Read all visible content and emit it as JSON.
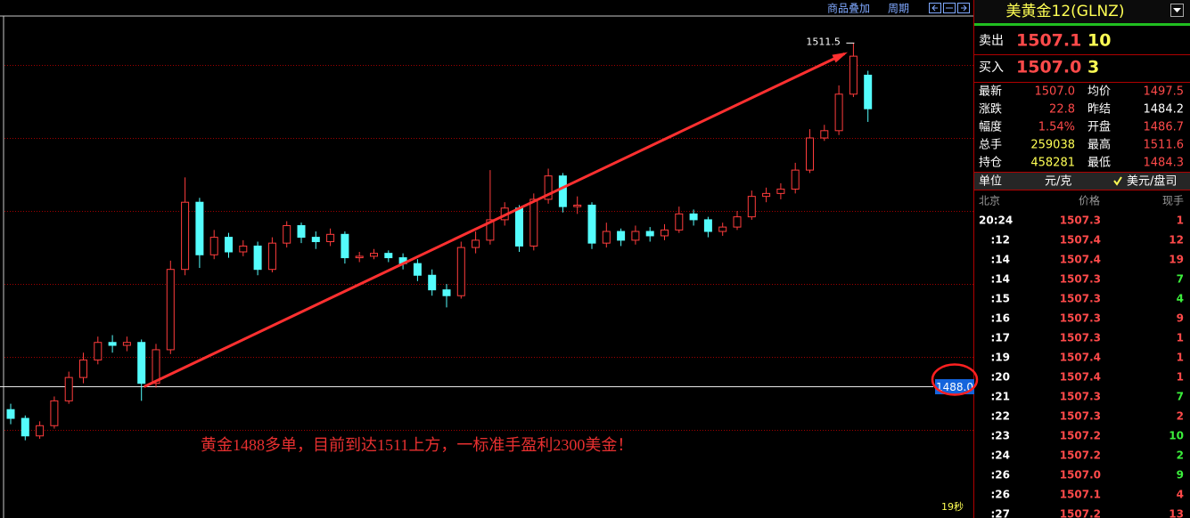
{
  "toolbar": {
    "overlay": "商品叠加",
    "period": "周期"
  },
  "chart_data": {
    "type": "candlestick",
    "open": [
      1486.4,
      1485.8,
      1484.6,
      1485.3,
      1487.0,
      1488.6,
      1489.8,
      1491.0,
      1490.8,
      1491.0,
      1488.2,
      1490.5,
      1496.0,
      1500.6,
      1497.0,
      1498.2,
      1497.2,
      1497.6,
      1496.0,
      1497.8,
      1499.0,
      1498.2,
      1497.9,
      1498.4,
      1496.8,
      1496.9,
      1497.1,
      1496.8,
      1496.4,
      1495.6,
      1494.6,
      1494.2,
      1497.5,
      1498.0,
      1499.4,
      1500.2,
      1497.6,
      1500.8,
      1502.4,
      1500.3,
      1500.4,
      1497.8,
      1498.6,
      1498.0,
      1498.6,
      1498.3,
      1498.7,
      1499.8,
      1499.4,
      1498.6,
      1498.9,
      1499.6,
      1501.0,
      1501.2,
      1501.5,
      1502.8,
      1505.0,
      1505.5,
      1508.0,
      1509.3
    ],
    "high": [
      1486.8,
      1486.0,
      1485.6,
      1487.3,
      1489.0,
      1490.3,
      1491.4,
      1491.5,
      1491.4,
      1491.2,
      1490.9,
      1496.6,
      1502.3,
      1500.9,
      1498.7,
      1498.5,
      1498.0,
      1497.9,
      1498.2,
      1499.3,
      1499.2,
      1498.6,
      1498.8,
      1498.6,
      1497.2,
      1497.4,
      1497.3,
      1497.1,
      1496.7,
      1496.0,
      1495.0,
      1497.9,
      1498.6,
      1502.8,
      1500.6,
      1500.4,
      1501.2,
      1502.9,
      1502.6,
      1501.0,
      1500.6,
      1499.2,
      1498.8,
      1499.0,
      1498.9,
      1499.1,
      1500.3,
      1500.1,
      1499.6,
      1499.2,
      1500.0,
      1501.4,
      1501.6,
      1501.9,
      1503.3,
      1505.6,
      1505.9,
      1508.6,
      1511.5,
      1509.6
    ],
    "low": [
      1485.4,
      1484.3,
      1484.4,
      1485.1,
      1486.8,
      1488.2,
      1489.5,
      1490.3,
      1490.4,
      1487.0,
      1487.9,
      1490.2,
      1495.6,
      1496.1,
      1496.7,
      1496.8,
      1496.9,
      1495.6,
      1495.8,
      1497.5,
      1497.8,
      1497.4,
      1497.6,
      1496.4,
      1496.5,
      1496.7,
      1496.5,
      1496.0,
      1495.2,
      1494.2,
      1493.4,
      1494.0,
      1497.1,
      1497.7,
      1499.0,
      1497.2,
      1497.3,
      1500.5,
      1499.9,
      1499.8,
      1497.4,
      1497.5,
      1497.6,
      1497.7,
      1497.9,
      1498.0,
      1498.5,
      1499.0,
      1498.2,
      1498.3,
      1498.7,
      1499.4,
      1500.6,
      1500.8,
      1501.2,
      1502.6,
      1504.8,
      1505.2,
      1507.8,
      1506.1
    ],
    "close": [
      1485.8,
      1484.6,
      1485.3,
      1487.0,
      1488.6,
      1489.8,
      1491.0,
      1490.8,
      1491.0,
      1488.2,
      1490.5,
      1496.0,
      1500.6,
      1497.0,
      1498.2,
      1497.2,
      1497.6,
      1496.0,
      1497.8,
      1499.0,
      1498.2,
      1497.9,
      1498.4,
      1496.8,
      1496.9,
      1497.1,
      1496.8,
      1496.4,
      1495.6,
      1494.6,
      1494.2,
      1497.5,
      1498.0,
      1499.4,
      1500.2,
      1497.6,
      1500.8,
      1502.4,
      1500.3,
      1500.4,
      1497.8,
      1498.6,
      1498.0,
      1498.6,
      1498.3,
      1498.7,
      1499.8,
      1499.4,
      1498.6,
      1498.9,
      1499.6,
      1501.0,
      1501.2,
      1501.5,
      1502.8,
      1505.0,
      1505.5,
      1508.0,
      1510.6,
      1507.0
    ],
    "up_color": "#ff3c3c",
    "down_color": "#54fcfc",
    "ylim": [
      1479.1,
      1513.35
    ],
    "gridlines": [
      1485,
      1490,
      1495,
      1500,
      1505,
      1510
    ],
    "grid": true,
    "reference_line": {
      "value": 1488,
      "label": "1488.0"
    },
    "peak_label": 1511.5,
    "annotation": "黄金1488多单，目前到达1511上方，一标准手盈利2300美金！"
  },
  "timer": "19秒",
  "panel": {
    "title": "美黄金12(GLNZ)",
    "ask": {
      "label": "卖出",
      "price": "1507.1",
      "size": "10"
    },
    "bid": {
      "label": "买入",
      "price": "1507.0",
      "size": "3"
    },
    "stats": [
      {
        "label": "最新",
        "value": "1507.0",
        "color": "#ff4a4a"
      },
      {
        "label": "均价",
        "value": "1497.5",
        "color": "#ff4a4a"
      },
      {
        "label": "涨跌",
        "value": "22.8",
        "color": "#ff4a4a"
      },
      {
        "label": "昨结",
        "value": "1484.2",
        "color": "#ffffff"
      },
      {
        "label": "幅度",
        "value": "1.54%",
        "color": "#ff4a4a"
      },
      {
        "label": "开盘",
        "value": "1486.7",
        "color": "#ff4a4a"
      },
      {
        "label": "总手",
        "value": "259038",
        "color": "#ffff54"
      },
      {
        "label": "最高",
        "value": "1511.6",
        "color": "#ff4a4a"
      },
      {
        "label": "持仓",
        "value": "458281",
        "color": "#ffff54"
      },
      {
        "label": "最低",
        "value": "1484.3",
        "color": "#ff4a4a"
      }
    ],
    "unit": {
      "label": "单位",
      "option1": "元/克",
      "option2": "美元/盘司"
    },
    "header": {
      "time": "北京",
      "price": "价格",
      "volume": "现手"
    },
    "ticks": [
      {
        "time": "20:24",
        "price": "1507.3",
        "volume": "1",
        "color": "#ff4a4a"
      },
      {
        "time": ":12",
        "price": "1507.4",
        "volume": "12",
        "color": "#ff4a4a"
      },
      {
        "time": ":14",
        "price": "1507.4",
        "volume": "19",
        "color": "#ff4a4a"
      },
      {
        "time": ":14",
        "price": "1507.3",
        "volume": "7",
        "color": "#3cf03c"
      },
      {
        "time": ":15",
        "price": "1507.3",
        "volume": "4",
        "color": "#3cf03c"
      },
      {
        "time": ":16",
        "price": "1507.3",
        "volume": "9",
        "color": "#ff4a4a"
      },
      {
        "time": ":17",
        "price": "1507.3",
        "volume": "1",
        "color": "#ff4a4a"
      },
      {
        "time": ":19",
        "price": "1507.4",
        "volume": "1",
        "color": "#ff4a4a"
      },
      {
        "time": ":20",
        "price": "1507.4",
        "volume": "1",
        "color": "#ff4a4a"
      },
      {
        "time": ":21",
        "price": "1507.3",
        "volume": "7",
        "color": "#3cf03c"
      },
      {
        "time": ":22",
        "price": "1507.3",
        "volume": "2",
        "color": "#ff4a4a"
      },
      {
        "time": ":23",
        "price": "1507.2",
        "volume": "10",
        "color": "#3cf03c"
      },
      {
        "time": ":24",
        "price": "1507.2",
        "volume": "2",
        "color": "#3cf03c"
      },
      {
        "time": ":26",
        "price": "1507.0",
        "volume": "9",
        "color": "#3cf03c"
      },
      {
        "time": ":26",
        "price": "1507.1",
        "volume": "4",
        "color": "#ff4a4a"
      },
      {
        "time": ":27",
        "price": "1507.2",
        "volume": "13",
        "color": "#ff4a4a"
      }
    ]
  }
}
